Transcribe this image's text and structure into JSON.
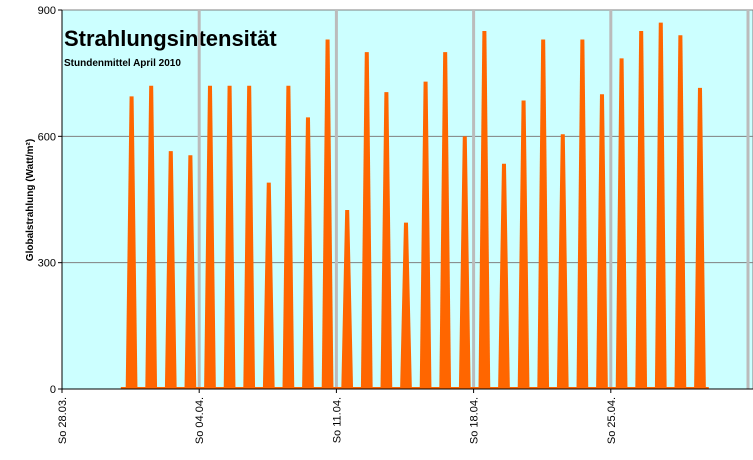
{
  "chart_data": {
    "type": "area",
    "title": "Strahlungsintensität",
    "subtitle": "Stundenmittel April 2010",
    "y_label": "Globalstrahlung (Watt/m²)",
    "x": [
      "01.04.",
      "02.04.",
      "03.04.",
      "04.04.",
      "05.04.",
      "06.04.",
      "07.04.",
      "08.04.",
      "09.04.",
      "10.04.",
      "11.04.",
      "12.04.",
      "13.04.",
      "14.04.",
      "15.04.",
      "16.04.",
      "17.04.",
      "18.04.",
      "19.04.",
      "20.04.",
      "21.04.",
      "22.04.",
      "23.04.",
      "24.04.",
      "25.04.",
      "26.04.",
      "27.04.",
      "28.04.",
      "29.04.",
      "30.04."
    ],
    "series": [
      {
        "name": "Globalstrahlung",
        "color": "#ff6600",
        "values": [
          695,
          720,
          565,
          555,
          720,
          720,
          720,
          490,
          720,
          645,
          830,
          425,
          800,
          705,
          395,
          730,
          800,
          600,
          850,
          535,
          685,
          830,
          605,
          830,
          700,
          785,
          850,
          870,
          840,
          715
        ]
      }
    ],
    "xlim": [
      "28.03.",
      "02.05."
    ],
    "xticks": [
      {
        "value": "28.03.",
        "label": "So 28.03."
      },
      {
        "value": "04.04.",
        "label": "So 04.04."
      },
      {
        "value": "11.04.",
        "label": "So 11.04."
      },
      {
        "value": "18.04.",
        "label": "So 18.04."
      },
      {
        "value": "25.04.",
        "label": "So 25.04."
      }
    ],
    "ylim": [
      0,
      900
    ],
    "yticks": [
      0,
      300,
      600,
      900
    ],
    "grid": true,
    "background": "#ccffff"
  }
}
